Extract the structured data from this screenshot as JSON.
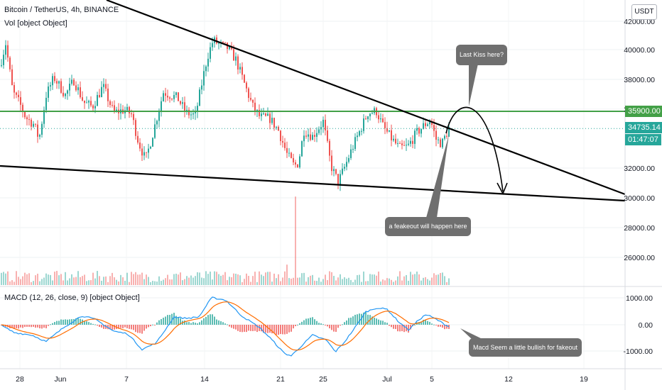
{
  "legend": {
    "symbol": "Bitcoin / TetherUS, 4h, BINANCE",
    "volume": "Vol [object Object]",
    "macd": "MACD (12, 26, close, 9) [object Object]"
  },
  "currency_button": "USDT",
  "price_axis_labels": [
    "42000.00",
    "40000.00",
    "38000.00",
    "36000.00",
    "32000.00",
    "30000.00",
    "28000.00",
    "26000.00"
  ],
  "macd_axis_labels": [
    "1000.00",
    "0.00",
    "-1000.00"
  ],
  "time_axis_labels": [
    "28",
    "Jun",
    "7",
    "14",
    "21",
    "25",
    "Jul",
    "5",
    "12",
    "19"
  ],
  "badges": {
    "resistance": "35900.00",
    "last_price": "34735.14",
    "countdown": "01:47:07"
  },
  "callouts": {
    "last_kiss": "Last Kiss here?",
    "fakeout": "a feakeout will happen here",
    "macd_note": "Macd Seem a little bullish for fakeout"
  },
  "colors": {
    "up": "#26a69a",
    "down": "#ef5350",
    "resistance": "#43a047",
    "macd_line": "#2196f3",
    "signal_line": "#ff6d00",
    "trendline": "#000000",
    "callout_bg": "#6f6f6f"
  },
  "chart_data": {
    "type": "candlestick",
    "price_anchors": [
      [
        0,
        39000
      ],
      [
        8,
        40500
      ],
      [
        18,
        37200
      ],
      [
        28,
        36400
      ],
      [
        36,
        35500
      ],
      [
        48,
        35000
      ],
      [
        55,
        34000
      ],
      [
        65,
        37000
      ],
      [
        76,
        38200
      ],
      [
        92,
        37000
      ],
      [
        104,
        38000
      ],
      [
        118,
        36500
      ],
      [
        130,
        36200
      ],
      [
        145,
        37600
      ],
      [
        160,
        35800
      ],
      [
        175,
        36000
      ],
      [
        185,
        35700
      ],
      [
        195,
        33800
      ],
      [
        205,
        32600
      ],
      [
        213,
        34000
      ],
      [
        230,
        37200
      ],
      [
        250,
        36800
      ],
      [
        262,
        35800
      ],
      [
        275,
        35600
      ],
      [
        285,
        38000
      ],
      [
        292,
        39600
      ],
      [
        300,
        40700
      ],
      [
        310,
        40400
      ],
      [
        320,
        40200
      ],
      [
        332,
        39400
      ],
      [
        346,
        37500
      ],
      [
        356,
        36200
      ],
      [
        366,
        35500
      ],
      [
        380,
        35400
      ],
      [
        392,
        34600
      ],
      [
        404,
        33000
      ],
      [
        414,
        32200
      ],
      [
        420,
        32400
      ],
      [
        428,
        34600
      ],
      [
        440,
        34200
      ],
      [
        455,
        35200
      ],
      [
        466,
        32200
      ],
      [
        476,
        31100
      ],
      [
        486,
        32200
      ],
      [
        495,
        33300
      ],
      [
        505,
        34400
      ],
      [
        518,
        35800
      ],
      [
        530,
        35900
      ],
      [
        540,
        34800
      ],
      [
        552,
        34000
      ],
      [
        562,
        33400
      ],
      [
        574,
        33500
      ],
      [
        586,
        34400
      ],
      [
        598,
        35000
      ],
      [
        606,
        35300
      ],
      [
        614,
        34000
      ],
      [
        622,
        33700
      ],
      [
        632,
        34735
      ]
    ],
    "volume_spikes": [
      [
        415,
        2600
      ],
      [
        402,
        400
      ],
      [
        405,
        600
      ]
    ],
    "macd_anchors": [
      [
        0,
        0
      ],
      [
        20,
        -300
      ],
      [
        45,
        -400
      ],
      [
        65,
        -650
      ],
      [
        90,
        -100
      ],
      [
        115,
        350
      ],
      [
        135,
        200
      ],
      [
        160,
        -250
      ],
      [
        180,
        -350
      ],
      [
        200,
        -950
      ],
      [
        220,
        -700
      ],
      [
        245,
        300
      ],
      [
        262,
        250
      ],
      [
        280,
        300
      ],
      [
        298,
        1050
      ],
      [
        318,
        950
      ],
      [
        340,
        350
      ],
      [
        365,
        -100
      ],
      [
        380,
        -500
      ],
      [
        400,
        -1100
      ],
      [
        410,
        -1200
      ],
      [
        425,
        -800
      ],
      [
        440,
        -400
      ],
      [
        460,
        -600
      ],
      [
        472,
        -1050
      ],
      [
        484,
        -700
      ],
      [
        500,
        -100
      ],
      [
        515,
        500
      ],
      [
        530,
        650
      ],
      [
        545,
        600
      ],
      [
        560,
        150
      ],
      [
        575,
        -200
      ],
      [
        590,
        200
      ],
      [
        600,
        400
      ],
      [
        615,
        200
      ],
      [
        630,
        -50
      ]
    ],
    "y_axis": {
      "min": 24000,
      "max": 43000
    },
    "macd_axis": {
      "min": -1500,
      "max": 1200
    },
    "resistance_level": 35900,
    "last_price": 34735.14
  }
}
